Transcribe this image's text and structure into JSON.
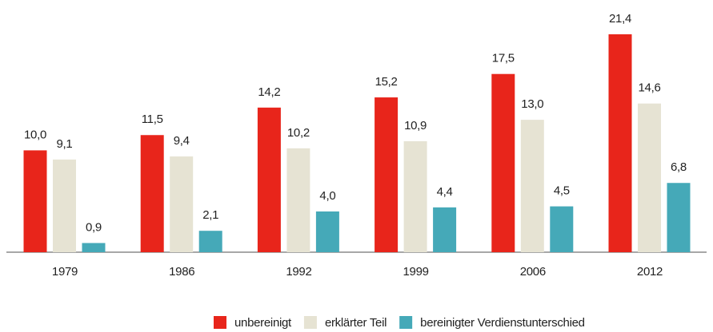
{
  "chart_data": {
    "type": "bar",
    "categories": [
      "1979",
      "1986",
      "1992",
      "1999",
      "2006",
      "2012"
    ],
    "series": [
      {
        "name": "unbereinigt",
        "color": "#e8251b",
        "values": [
          10.0,
          11.5,
          14.2,
          15.2,
          17.5,
          21.4
        ],
        "value_labels": [
          "10,0",
          "11,5",
          "14,2",
          "15,2",
          "17,5",
          "21,4"
        ]
      },
      {
        "name": "erklärter Teil",
        "color": "#e6e3d3",
        "values": [
          9.1,
          9.4,
          10.2,
          10.9,
          13.0,
          14.6
        ],
        "value_labels": [
          "9,1",
          "9,4",
          "10,2",
          "10,9",
          "13,0",
          "14,6"
        ]
      },
      {
        "name": "bereinigter Verdienstunterschied",
        "color": "#45a9b8",
        "values": [
          0.9,
          2.1,
          4.0,
          4.4,
          4.5,
          6.8
        ],
        "value_labels": [
          "0,9",
          "2,1",
          "4,0",
          "4,4",
          "4,5",
          "6,8"
        ]
      }
    ],
    "ylim": [
      0,
      22
    ],
    "legend": "bottom"
  }
}
